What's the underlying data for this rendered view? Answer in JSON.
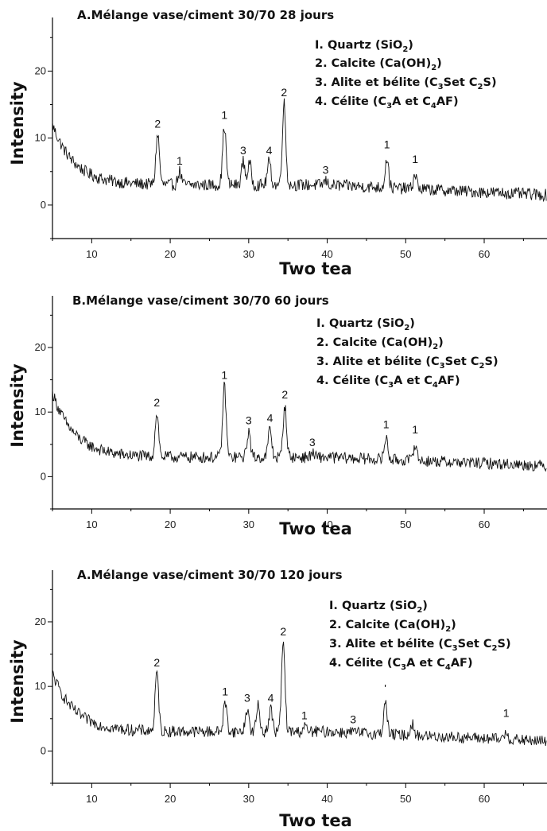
{
  "chart_data": [
    {
      "type": "line",
      "title": "A.Mélange vase/ciment 30/70 28 jours",
      "xlabel": "Two tea",
      "ylabel": "Intensity",
      "xlim": [
        5,
        68
      ],
      "ylim": [
        -5,
        28
      ],
      "xticks": [
        "10",
        "20",
        "30",
        "40",
        "50",
        "60"
      ],
      "yticks": [
        "0",
        "10",
        "20"
      ],
      "legend": [
        "I. Quartz (SiO2)",
        "2. Calcite (Ca(OH)2)",
        "3. Alite et bélite (C3Set C2S)",
        "4. Célite (C3A et C4AF)"
      ],
      "peaks": [
        {
          "x": 18.4,
          "y": 10.5,
          "label": "2"
        },
        {
          "x": 21.2,
          "y": 5.0,
          "label": "1"
        },
        {
          "x": 26.9,
          "y": 11.8,
          "label": "1"
        },
        {
          "x": 29.3,
          "y": 6.5,
          "label": "3"
        },
        {
          "x": 30.1,
          "y": 6.2,
          "label": ""
        },
        {
          "x": 32.6,
          "y": 6.5,
          "label": "4"
        },
        {
          "x": 34.5,
          "y": 15.2,
          "label": "2"
        },
        {
          "x": 39.8,
          "y": 3.6,
          "label": "3"
        },
        {
          "x": 47.6,
          "y": 7.4,
          "label": "1"
        },
        {
          "x": 51.2,
          "y": 5.2,
          "label": "1"
        }
      ],
      "baseline": {
        "start": 12,
        "decay": 2.8,
        "floor": 3,
        "end": 1.5
      }
    },
    {
      "type": "line",
      "title": "B.Mélange vase/ciment 30/70 60 jours",
      "xlabel": "Two tea",
      "ylabel": "Intensity",
      "xlim": [
        5,
        68
      ],
      "ylim": [
        -5,
        28
      ],
      "xticks": [
        "10",
        "20",
        "30",
        "40",
        "50",
        "60"
      ],
      "yticks": [
        "0",
        "10",
        "20"
      ],
      "legend": [
        "I. Quartz (SiO2)",
        "2. Calcite (Ca(OH)2)",
        "3. Alite et bélite (C3Set C2S)",
        "4. Célite (C3A et C4AF)"
      ],
      "peaks": [
        {
          "x": 18.3,
          "y": 9.8,
          "label": "2"
        },
        {
          "x": 26.9,
          "y": 14.0,
          "label": "1"
        },
        {
          "x": 30.0,
          "y": 7.0,
          "label": "3"
        },
        {
          "x": 32.7,
          "y": 7.4,
          "label": "4"
        },
        {
          "x": 34.6,
          "y": 11.0,
          "label": "2"
        },
        {
          "x": 38.1,
          "y": 3.6,
          "label": "3"
        },
        {
          "x": 47.5,
          "y": 6.4,
          "label": "1"
        },
        {
          "x": 51.2,
          "y": 5.6,
          "label": "1"
        }
      ],
      "baseline": {
        "start": 13,
        "decay": 2.8,
        "floor": 3,
        "end": 1.7
      }
    },
    {
      "type": "line",
      "title": "A.Mélange vase/ciment 30/70 120 jours",
      "xlabel": "Two tea",
      "ylabel": "Intensity",
      "xlim": [
        5,
        68
      ],
      "ylim": [
        -5,
        28
      ],
      "xticks": [
        "10",
        "20",
        "30",
        "40",
        "50",
        "60"
      ],
      "yticks": [
        "0",
        "10",
        "20"
      ],
      "legend": [
        "I. Quartz (SiO2)",
        "2. Calcite (Ca(OH)2)",
        "3. Alite et bélite (C3Set C2S)",
        "4. Célite (C3A et C4AF)"
      ],
      "peaks": [
        {
          "x": 18.3,
          "y": 12.0,
          "label": "2"
        },
        {
          "x": 27.0,
          "y": 7.5,
          "label": "1"
        },
        {
          "x": 29.8,
          "y": 6.5,
          "label": "3"
        },
        {
          "x": 31.2,
          "y": 7.0,
          "label": ""
        },
        {
          "x": 32.8,
          "y": 6.5,
          "label": "4"
        },
        {
          "x": 34.4,
          "y": 16.8,
          "label": "2"
        },
        {
          "x": 37.1,
          "y": 3.8,
          "label": "1"
        },
        {
          "x": 43.3,
          "y": 3.2,
          "label": "3"
        },
        {
          "x": 47.4,
          "y": 8.0,
          "label": "'"
        },
        {
          "x": 50.8,
          "y": 4.8,
          "label": ""
        },
        {
          "x": 62.8,
          "y": 4.2,
          "label": "1"
        }
      ],
      "baseline": {
        "start": 12,
        "decay": 2.8,
        "floor": 3,
        "end": 1.5
      }
    }
  ]
}
